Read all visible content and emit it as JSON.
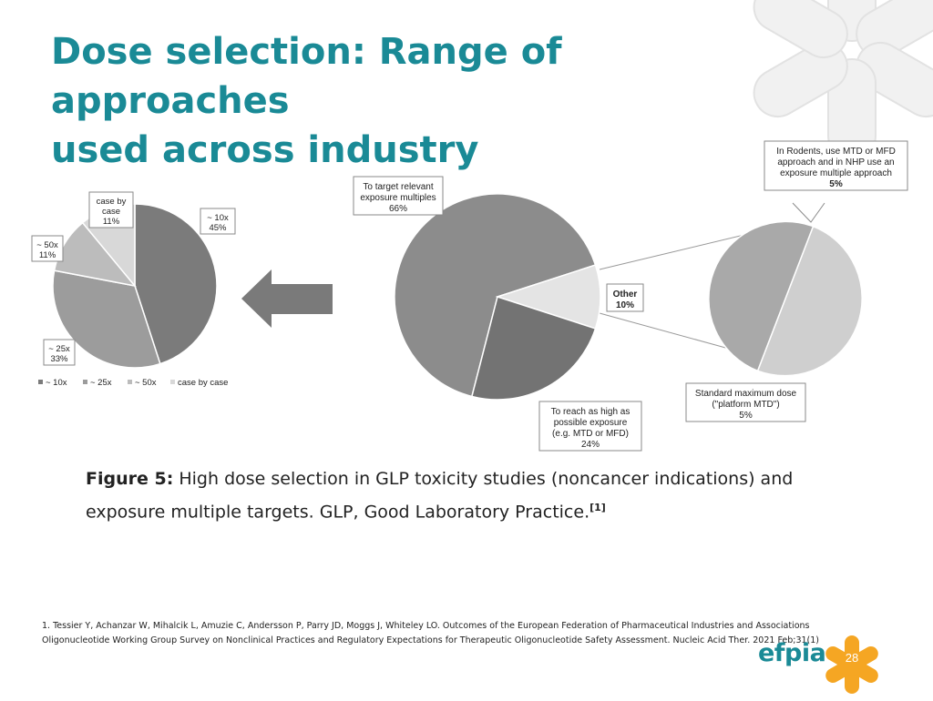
{
  "slide": {
    "title_line1": "Dose selection: Range of approaches",
    "title_line2": "used across industry",
    "caption_label": "Figure 5:",
    "caption_text": "High dose selection in GLP toxicity studies (noncancer indications) and exposure multiple targets. GLP, Good Laboratory Practice.",
    "caption_ref": "[1]",
    "reference_line1": "1. Tessier Y, Achanzar W, Mihalcik L, Amuzie C, Andersson P, Parry JD, Moggs J, Whiteley LO. Outcomes of the European Federation of Pharmaceutical Industries and Associations",
    "reference_line2": "Oligonucleotide Working Group Survey on Nonclinical Practices and Regulatory Expectations for Therapeutic Oligonucleotide Safety Assessment. Nucleic Acid Ther. 2021 Feb;31(1)",
    "page_number": "28",
    "logo_text": "efpia",
    "colors": {
      "title": "#1a8a96",
      "logo_star": "#f5a623",
      "logo_text": "#1a8a96"
    }
  },
  "chart_data": [
    {
      "type": "pie",
      "slices": [
        {
          "legend": "~ 10x",
          "label_lines": [
            "~ 10x",
            "45%"
          ],
          "value": 45,
          "color": "#7b7b7b"
        },
        {
          "legend": "~ 25x",
          "label_lines": [
            "~ 25x",
            "33%"
          ],
          "value": 33,
          "color": "#9c9c9c"
        },
        {
          "legend": "~ 50x",
          "label_lines": [
            "~ 50x",
            "11%"
          ],
          "value": 11,
          "color": "#bcbcbc"
        },
        {
          "legend": "case by case",
          "label_lines": [
            "case by",
            "case",
            "11%"
          ],
          "value": 11,
          "color": "#d8d8d8"
        }
      ],
      "legend_position": "bottom"
    },
    {
      "type": "pie",
      "slices": [
        {
          "label_lines": [
            "To target relevant",
            "exposure multiples",
            "66%"
          ],
          "value": 66,
          "color": "#8c8c8c"
        },
        {
          "label_lines": [
            "Other",
            "10%"
          ],
          "value": 10,
          "color": "#e4e4e4"
        },
        {
          "label_lines": [
            "To reach as high as",
            "possible exposure",
            "(e.g. MTD or MFD)",
            "24%"
          ],
          "value": 24,
          "color": "#737373"
        }
      ]
    },
    {
      "type": "pie",
      "breakdown_of": "Other",
      "slices": [
        {
          "label_lines": [
            "In Rodents, use MTD or MFD",
            "approach and in NHP use an",
            "exposure multiple approach",
            "5%"
          ],
          "value": 5,
          "color": "#cfcfcf"
        },
        {
          "label_lines": [
            "Standard maximum dose",
            "(\"platform MTD\")",
            "5%"
          ],
          "value": 5,
          "color": "#a9a9a9"
        }
      ]
    }
  ]
}
